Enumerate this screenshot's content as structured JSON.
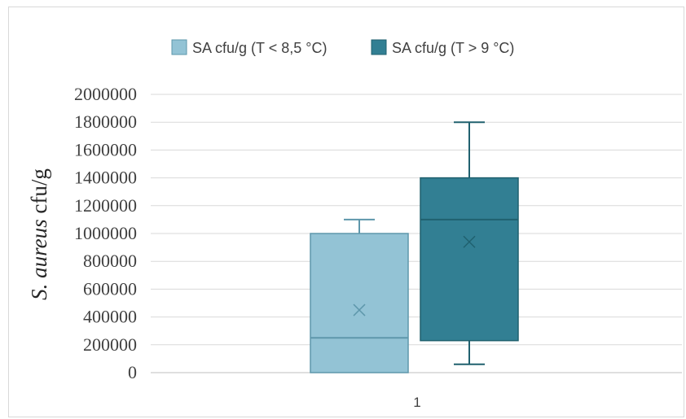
{
  "chart_data": {
    "type": "box",
    "categories": [
      "1"
    ],
    "ylabel_italic": "S. aureus",
    "ylabel_rest": " cfu/g",
    "ylim": [
      0,
      2000000
    ],
    "yticks": [
      0,
      200000,
      400000,
      600000,
      800000,
      1000000,
      1200000,
      1400000,
      1600000,
      1800000,
      2000000
    ],
    "ytick_labels": [
      "0",
      "200000",
      "400000",
      "600000",
      "800000",
      "1000000",
      "1200000",
      "1400000",
      "1600000",
      "1800000",
      "2000000"
    ],
    "grid": true,
    "legend_position": "top",
    "series": [
      {
        "name": "SA cfu/g (T < 8,5 °C)",
        "color": "#93c3d5",
        "border": "#5e97ab",
        "min": 0,
        "q1": 0,
        "median": 250000,
        "q3": 1000000,
        "max": 1100000,
        "mean": 450000
      },
      {
        "name": "SA cfu/g (T > 9 °C)",
        "color": "#327f93",
        "border": "#20616f",
        "min": 60000,
        "q1": 230000,
        "median": 1100000,
        "q3": 1400000,
        "max": 1800000,
        "mean": 940000
      }
    ]
  }
}
